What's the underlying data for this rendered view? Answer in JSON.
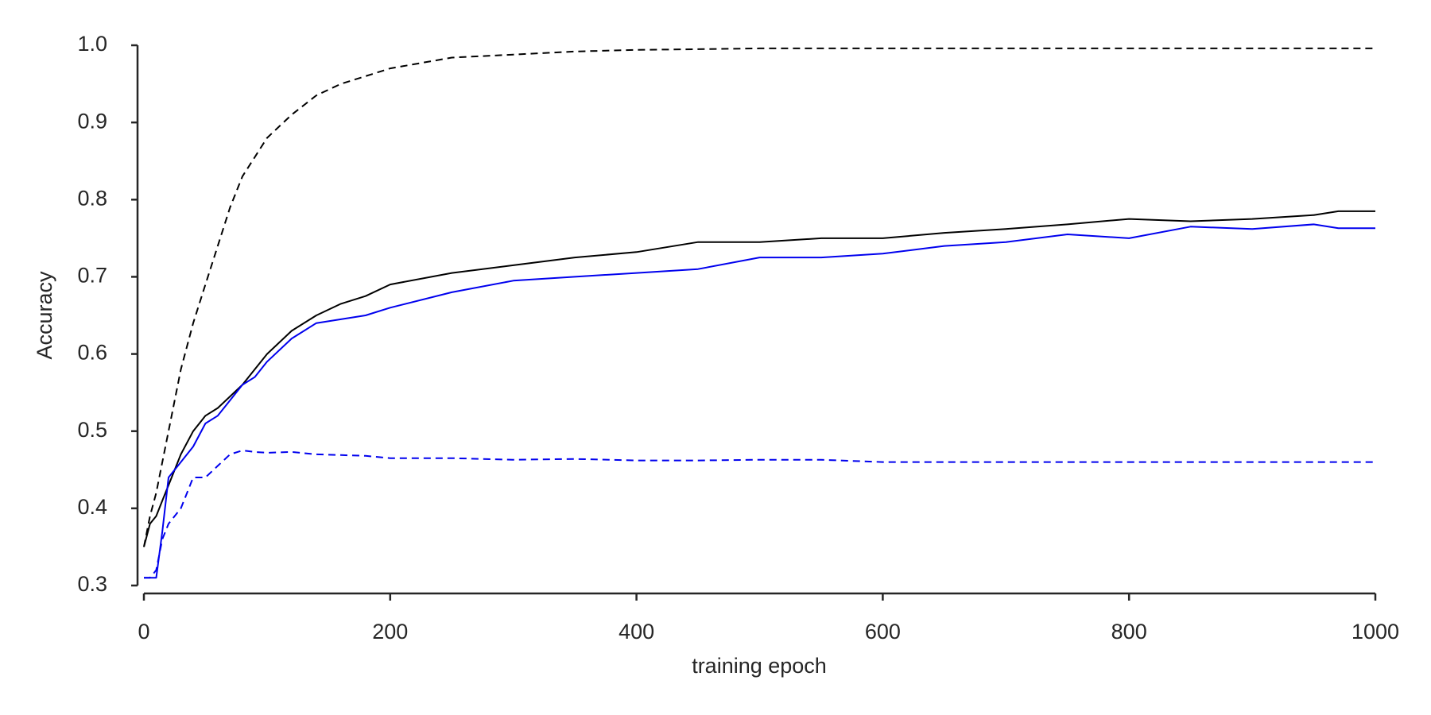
{
  "chart_data": {
    "type": "line",
    "xlabel": "training epoch",
    "ylabel": "Accuracy",
    "x": [
      0,
      5,
      10,
      15,
      20,
      30,
      40,
      50,
      60,
      70,
      80,
      90,
      100,
      120,
      140,
      160,
      180,
      200,
      250,
      300,
      350,
      400,
      450,
      500,
      550,
      600,
      650,
      700,
      750,
      800,
      850,
      900,
      950,
      970,
      1000
    ],
    "series": [
      {
        "color": "#000000",
        "dashed": true,
        "values": [
          0.35,
          0.39,
          0.42,
          0.46,
          0.5,
          0.58,
          0.64,
          0.69,
          0.74,
          0.79,
          0.83,
          0.855,
          0.88,
          0.91,
          0.935,
          0.95,
          0.96,
          0.97,
          0.984,
          0.988,
          0.992,
          0.994,
          0.995,
          0.996,
          0.996,
          0.996,
          0.996,
          0.996,
          0.996,
          0.996,
          0.996,
          0.996,
          0.996,
          0.996,
          0.996
        ]
      },
      {
        "color": "#000000",
        "dashed": false,
        "values": [
          0.35,
          0.38,
          0.39,
          0.41,
          0.43,
          0.47,
          0.5,
          0.52,
          0.53,
          0.545,
          0.56,
          0.58,
          0.6,
          0.63,
          0.65,
          0.665,
          0.675,
          0.69,
          0.705,
          0.715,
          0.725,
          0.732,
          0.745,
          0.745,
          0.75,
          0.75,
          0.757,
          0.762,
          0.768,
          0.775,
          0.772,
          0.775,
          0.78,
          0.785,
          0.785
        ]
      },
      {
        "color": "#0000ee",
        "dashed": false,
        "values": [
          0.31,
          0.31,
          0.31,
          0.37,
          0.44,
          0.46,
          0.48,
          0.51,
          0.52,
          0.54,
          0.56,
          0.57,
          0.59,
          0.62,
          0.64,
          0.645,
          0.65,
          0.66,
          0.68,
          0.695,
          0.7,
          0.705,
          0.71,
          0.725,
          0.725,
          0.73,
          0.74,
          0.745,
          0.755,
          0.75,
          0.765,
          0.762,
          0.768,
          0.763,
          0.763
        ]
      },
      {
        "color": "#0000ee",
        "dashed": true,
        "values": [
          0.31,
          0.31,
          0.32,
          0.36,
          0.38,
          0.4,
          0.44,
          0.44,
          0.455,
          0.47,
          0.475,
          0.473,
          0.472,
          0.473,
          0.47,
          0.469,
          0.468,
          0.465,
          0.465,
          0.463,
          0.464,
          0.462,
          0.462,
          0.463,
          0.463,
          0.46,
          0.46,
          0.46,
          0.46,
          0.46,
          0.46,
          0.46,
          0.46,
          0.46,
          0.46
        ]
      }
    ],
    "xlim": [
      0,
      1000
    ],
    "xticks": [
      0,
      200,
      400,
      600,
      800,
      1000
    ],
    "ylim": [
      0.3,
      1.0
    ],
    "yticks": [
      0.3,
      0.4,
      0.5,
      0.6,
      0.7,
      0.8,
      0.9,
      {
        "value": 1.0,
        "label": "1.0"
      }
    ],
    "grid": false
  }
}
